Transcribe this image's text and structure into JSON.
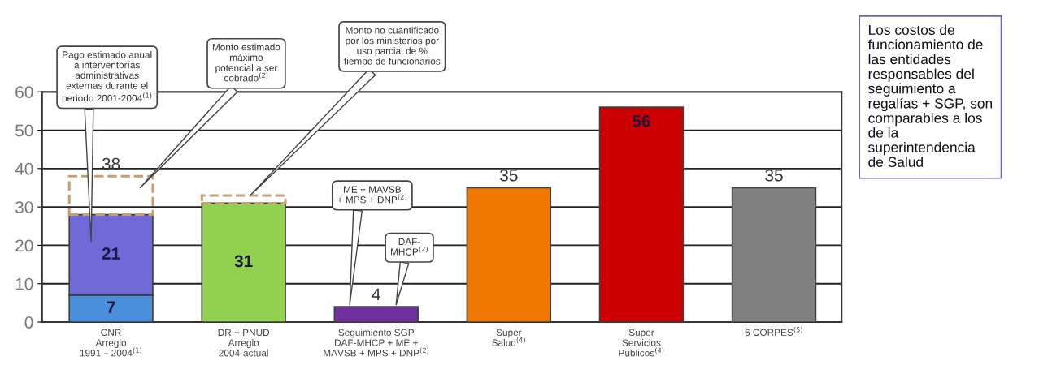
{
  "chart_data": {
    "type": "bar",
    "stacked": true,
    "categories": [
      "CNR\nArreglo\n1991 – 2004$^{(1)}$",
      "DR + PNUD\nArreglo\n2004-actual",
      "Seguimiento SGP\nDAF-MHCP + ME +\nMAVSB + MPS + DNP$^{(2)}$",
      "Super\nSalud$^{(4)}$",
      "Super\nServicios\nPúblicos$^{(4)}$",
      "6 CORPES$^{(5)}$"
    ],
    "series": [
      {
        "color": "#4a8fdc",
        "values": [
          7,
          null,
          null,
          null,
          null,
          null
        ],
        "value_labels": [
          "7",
          null,
          null,
          null,
          null,
          null
        ]
      },
      {
        "colors": [
          "#6f6ad6",
          "#92d050",
          "#7030a0",
          "#f07800",
          "#cc0000",
          "#808080"
        ],
        "values": [
          21,
          31,
          4,
          35,
          56,
          35
        ],
        "value_labels": [
          "21",
          "31",
          "4",
          "35",
          "56",
          "35"
        ]
      },
      {
        "color": "#c8a070",
        "line_style": "dashed",
        "values": [
          10,
          2,
          null,
          null,
          null,
          null
        ]
      }
    ],
    "totals": [
      "38",
      null,
      null,
      null,
      null,
      null
    ],
    "ylim": [
      0,
      60
    ],
    "yticks": [
      0,
      10,
      20,
      30,
      40,
      50,
      60
    ],
    "grid": "y",
    "annotations": [
      "Pago estimado anual\na interventorías\nadministrativas\nexternas durante el\nperiodo 2001-2004$^{(1)}$",
      "Monto estimado\nmáximo\npotencial a ser\ncobrado$^{(2)}$",
      "Monto no cuantificado\npor los ministerios por\nuso parcial de %\ntiempo de funcionarios",
      "ME + MAVSB\n+ MPS + DNP$^{(2)}$",
      "DAF-\nMHCP$^{(2)}$",
      "Los costos de\nfuncionamiento de\nlas entidades\nresponsables del\nseguimiento a\nregalías + SGP, son\ncomparables a los\nde la\nsuperintendencia\nde Salud"
    ]
  }
}
